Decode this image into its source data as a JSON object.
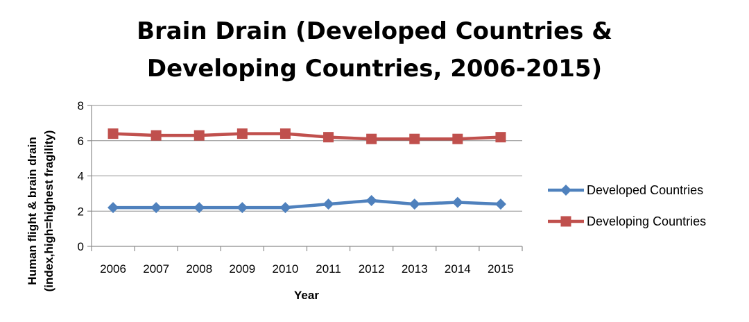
{
  "chart_data": {
    "type": "line",
    "title_lines": [
      "Brain Drain (Developed Countries &",
      "Developing Countries, 2006-2015)"
    ],
    "xlabel": "Year",
    "ylabel_lines": [
      "Human flight & brain drain",
      "(index,high=highest fragility)"
    ],
    "categories": [
      "2006",
      "2007",
      "2008",
      "2009",
      "2010",
      "2011",
      "2012",
      "2013",
      "2014",
      "2015"
    ],
    "ylim": [
      0,
      8
    ],
    "yticks": [
      0,
      2,
      4,
      6,
      8
    ],
    "grid": true,
    "legend_position": "right",
    "series": [
      {
        "name": "Developed Countries",
        "color": "#4f81bd",
        "marker": "diamond",
        "values": [
          2.2,
          2.2,
          2.2,
          2.2,
          2.2,
          2.4,
          2.6,
          2.4,
          2.5,
          2.4
        ]
      },
      {
        "name": "Developing Countries",
        "color": "#c0504d",
        "marker": "square",
        "values": [
          6.4,
          6.3,
          6.3,
          6.4,
          6.4,
          6.2,
          6.1,
          6.1,
          6.1,
          6.2
        ]
      }
    ]
  }
}
